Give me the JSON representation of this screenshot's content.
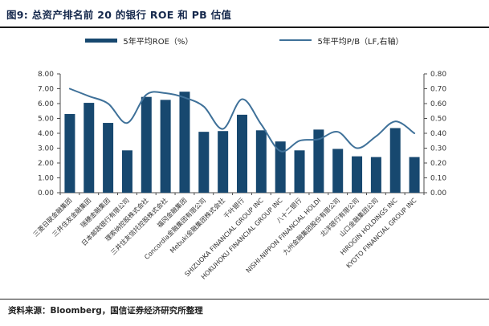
{
  "figure": {
    "title": "图9: 总资产排名前 20 的银行 ROE 和 PB 估值",
    "source": "资料来源：Bloomberg，国信证券经济研究所整理"
  },
  "legend": [
    {
      "label": "5年平均ROE（%）",
      "marker": "bar-swatch",
      "color": "#17486F"
    },
    {
      "label": "5年平均P/B（LF,右轴）",
      "marker": "line-swatch",
      "color": "#3F7199"
    }
  ],
  "chart_data": {
    "type": "bar",
    "subtype": "bar+line-dual-axis",
    "title": "图9: 总资产排名前 20 的银行 ROE 和 PB 估值",
    "grid": false,
    "legend_position": "top",
    "categories": [
      "三菱日联金融集团",
      "三井住友金融集团",
      "瑞穗金融集团",
      "日本邮政银行有限公司",
      "理索纳控股株式会社",
      "三井住友信托控股株式会社",
      "福冈金融集团",
      "Concordia金融集团有限公司",
      "Mebuki金融集团株式会社",
      "千叶银行",
      "SHIZUOKA FINANCIAL GROUP INC",
      "HOKUHOKU FINANCIAL GROUP INC",
      "八十二银行",
      "NISHI-NIPPON FINANCIAL HOLDI",
      "九州金融集团股份有限公司",
      "北洋银行有限公司",
      "山口金融集团公司",
      "HIROGIN HOLDINGS INC",
      "KYOTO FINANCIAL GROUP INC"
    ],
    "series": [
      {
        "name": "5年平均ROE（%）",
        "type": "bar",
        "axis": "left",
        "color": "#17486F",
        "values": [
          5.3,
          6.05,
          4.7,
          2.85,
          6.45,
          6.25,
          6.8,
          4.1,
          4.15,
          5.25,
          4.2,
          3.45,
          2.85,
          4.25,
          2.95,
          2.45,
          2.4,
          4.35,
          2.4
        ]
      },
      {
        "name": "5年平均P/B（LF,右轴）",
        "type": "line",
        "axis": "right",
        "color": "#3F7199",
        "values": [
          0.7,
          0.65,
          0.6,
          0.47,
          0.66,
          0.67,
          0.64,
          0.58,
          0.43,
          0.63,
          0.46,
          0.28,
          0.35,
          0.36,
          0.41,
          0.3,
          0.38,
          0.48,
          0.4
        ]
      }
    ],
    "left_axis": {
      "min": 0,
      "max": 8,
      "step": 1,
      "tick_format": "2dp"
    },
    "right_axis": {
      "min": 0,
      "max": 0.8,
      "step": 0.1,
      "tick_format": "2dp"
    },
    "axis_text_color": "#333333",
    "axis_line_color": "#4d4d4d"
  }
}
